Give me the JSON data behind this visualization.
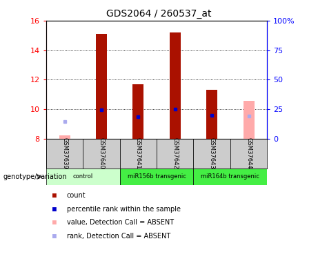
{
  "title": "GDS2064 / 260537_at",
  "samples": [
    "GSM37639",
    "GSM37640",
    "GSM37641",
    "GSM37642",
    "GSM37643",
    "GSM37644"
  ],
  "bar_values": [
    null,
    15.1,
    11.7,
    15.2,
    11.3,
    null
  ],
  "bar_color": "#aa1100",
  "absent_bar_values": [
    8.2,
    null,
    null,
    null,
    null,
    10.55
  ],
  "absent_bar_color": "#ffaaaa",
  "rank_markers": [
    null,
    9.95,
    9.5,
    10.0,
    9.6,
    null
  ],
  "rank_color": "#0000cc",
  "absent_rank_values": [
    9.15,
    null,
    null,
    null,
    null,
    9.55
  ],
  "absent_rank_color": "#aaaaee",
  "ylim": [
    8,
    16
  ],
  "yticks": [
    8,
    10,
    12,
    14,
    16
  ],
  "right_yticks": [
    0,
    25,
    50,
    75,
    100
  ],
  "right_ylim": [
    0,
    100
  ],
  "groups": [
    {
      "start": 0,
      "end": 1,
      "label": "control",
      "color": "#ccffcc"
    },
    {
      "start": 2,
      "end": 3,
      "label": "miR156b transgenic",
      "color": "#44ee44"
    },
    {
      "start": 4,
      "end": 5,
      "label": "miR164b transgenic",
      "color": "#44ee44"
    }
  ],
  "legend_items": [
    {
      "label": "count",
      "color": "#aa1100"
    },
    {
      "label": "percentile rank within the sample",
      "color": "#0000cc"
    },
    {
      "label": "value, Detection Call = ABSENT",
      "color": "#ffaaaa"
    },
    {
      "label": "rank, Detection Call = ABSENT",
      "color": "#aaaaee"
    }
  ],
  "bar_width": 0.3
}
